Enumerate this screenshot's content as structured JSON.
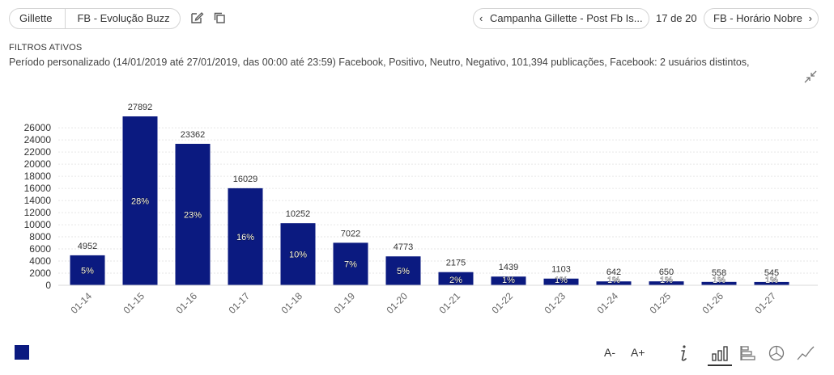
{
  "breadcrumb": {
    "items": [
      "Gillette",
      "FB - Evolução Buzz"
    ]
  },
  "toolbar": {
    "edit_icon": "edit-icon",
    "copy_icon": "copy-icon"
  },
  "navigation": {
    "prev_label": "Campanha Gillette - Post Fb Is...",
    "counter": "17 de 20",
    "next_label": "FB - Horário Nobre",
    "prev_chevron": "‹",
    "next_chevron": "›"
  },
  "filters": {
    "title": "FILTROS ATIVOS",
    "text": "Período personalizado (14/01/2019 até 27/01/2019, das 00:00 até 23:59) Facebook, Positivo, Neutro, Negativo, 101,394 publicações, Facebook: 2 usuários distintos,"
  },
  "chart_data": {
    "type": "bar",
    "categories": [
      "01-14",
      "01-15",
      "01-16",
      "01-17",
      "01-18",
      "01-19",
      "01-20",
      "01-21",
      "01-22",
      "01-23",
      "01-24",
      "01-25",
      "01-26",
      "01-27"
    ],
    "values": [
      4952,
      27892,
      23362,
      16029,
      10252,
      7022,
      4773,
      2175,
      1439,
      1103,
      642,
      650,
      558,
      545
    ],
    "percent_labels": [
      "5%",
      "28%",
      "23%",
      "16%",
      "10%",
      "7%",
      "5%",
      "2%",
      "1%",
      "1%",
      "1%",
      "1%",
      "1%",
      "1%"
    ],
    "yticks": [
      0,
      2000,
      4000,
      6000,
      8000,
      10000,
      12000,
      14000,
      16000,
      18000,
      20000,
      22000,
      24000,
      26000
    ],
    "ylim": [
      0,
      27892
    ],
    "grid": true,
    "bar_color": "#0b1a80",
    "legend_placement": "bottom-left"
  },
  "bottom_toolbar": {
    "font_decrease": "A-",
    "font_increase": "A+",
    "icons": [
      "info-icon",
      "bar-chart-icon",
      "horizontal-bar-icon",
      "pie-chart-icon",
      "line-chart-icon"
    ],
    "active": "bar-chart-icon"
  }
}
